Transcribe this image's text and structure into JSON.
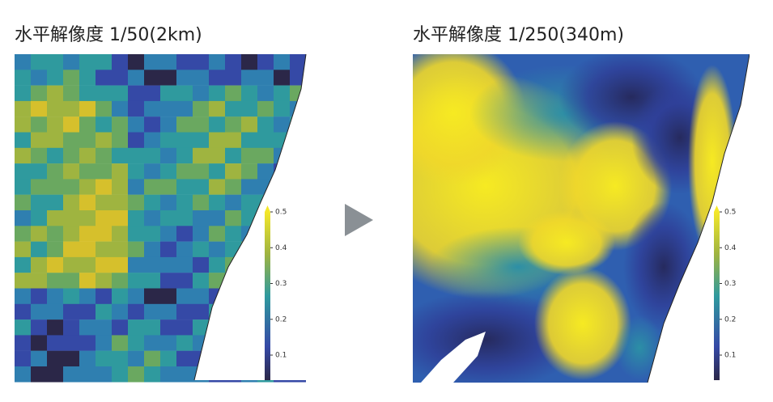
{
  "panels": [
    {
      "title": "水平解像度 1/50(2km)",
      "colorbar": {
        "lim": [
          0.03,
          0.5
        ],
        "ticks": [
          0.1,
          0.2,
          0.3,
          0.4,
          0.5
        ]
      }
    },
    {
      "title": "水平解像度 1/250(340m)",
      "colorbar": {
        "lim": [
          0.03,
          0.5
        ],
        "ticks": [
          0.1,
          0.2,
          0.3,
          0.4,
          0.5
        ]
      }
    }
  ]
}
